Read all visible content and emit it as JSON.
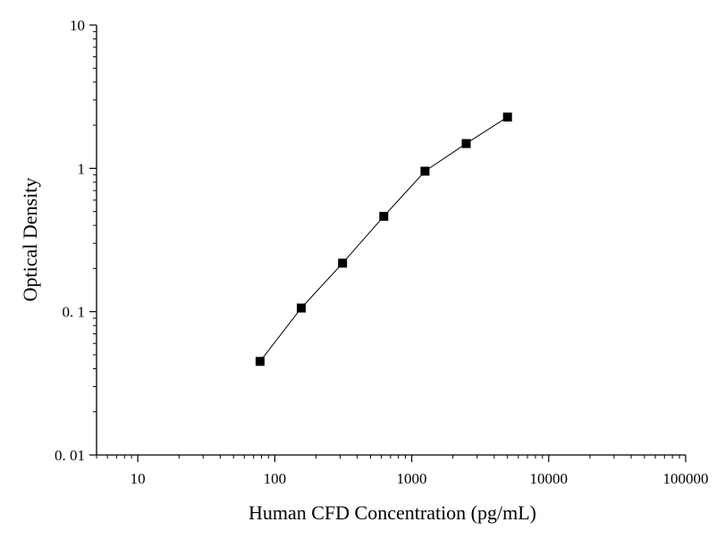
{
  "chart_data": {
    "type": "scatter",
    "title": "",
    "xlabel": "Human CFD Concentration (pg/mL)",
    "ylabel": "Optical Density",
    "xscale": "log",
    "yscale": "log",
    "xlim": [
      5,
      100000
    ],
    "ylim": [
      0.01,
      10
    ],
    "x_ticks": [
      10,
      100,
      1000,
      10000,
      100000
    ],
    "x_tick_labels": [
      "10",
      "100",
      "1000",
      "10000",
      "100000"
    ],
    "y_ticks": [
      0.01,
      0.1,
      1,
      10
    ],
    "y_tick_labels": [
      "0. 01",
      "0. 1",
      "1",
      "10"
    ],
    "grid": false,
    "legend": "none",
    "marker": "square",
    "line_connect": true,
    "colors": {
      "marker": "#000000",
      "line": "#000000",
      "axis": "#000000"
    },
    "series": [
      {
        "x": [
          78.13,
          156.25,
          312.5,
          625,
          1250,
          2500,
          5000
        ],
        "y": [
          0.045,
          0.106,
          0.218,
          0.463,
          0.955,
          1.49,
          2.28
        ]
      }
    ]
  }
}
